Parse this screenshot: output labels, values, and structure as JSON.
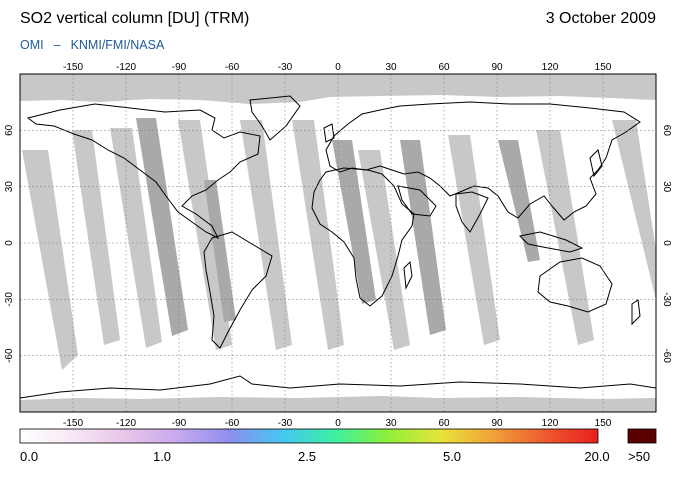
{
  "header": {
    "title": "SO2 vertical column [DU] (TRM)",
    "date": "3 October 2009",
    "credit_left": "OMI",
    "credit_dash": "–",
    "credit_right": "KNMI/FMI/NASA"
  },
  "map": {
    "longitude_ticks": [
      -150,
      -120,
      -90,
      -60,
      -30,
      0,
      30,
      60,
      90,
      120,
      150
    ],
    "latitude_ticks": [
      60,
      30,
      0,
      -30,
      -60
    ],
    "lon_range": [
      -180,
      180
    ],
    "lat_range": [
      -90,
      90
    ],
    "no_data_color": "#c8c8c8",
    "coastline_color": "#000000"
  },
  "colorbar": {
    "labels": [
      "0.0",
      "1.0",
      "2.5",
      "5.0",
      "20.0",
      ">50"
    ],
    "overflow_color": "#5a0000",
    "colors": [
      "#ffffff",
      "#f6e8f4",
      "#e9c4ea",
      "#c7a9ee",
      "#8e8ef0",
      "#45c8f0",
      "#3ef0a0",
      "#8ef03a",
      "#e6e43a",
      "#f2a13a",
      "#ee5a2e",
      "#e81e1e"
    ]
  }
}
